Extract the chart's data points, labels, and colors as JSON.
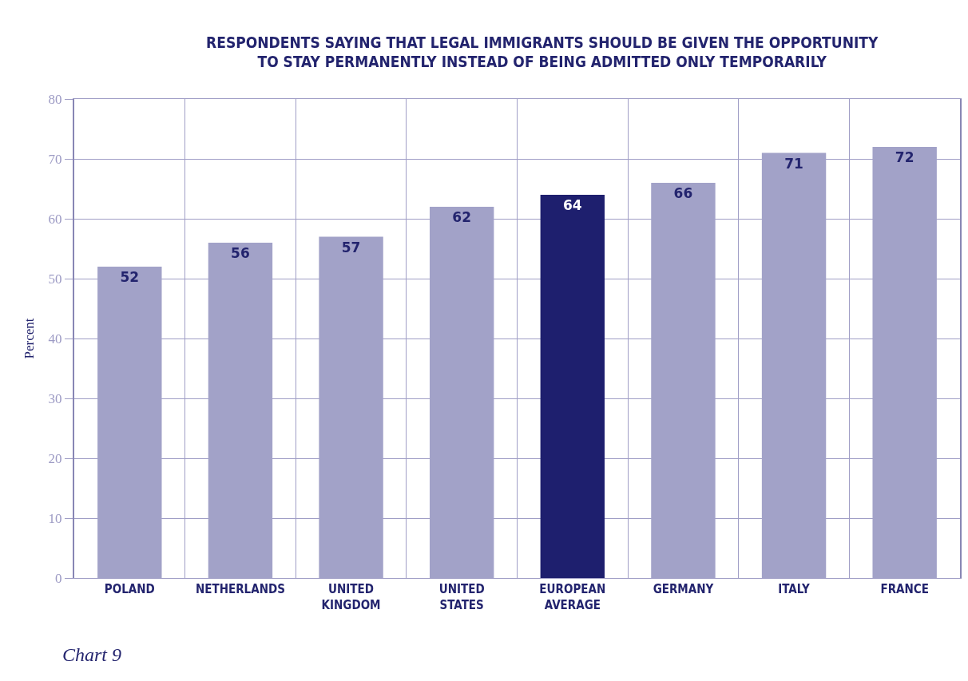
{
  "chart_data": {
    "type": "bar",
    "title": "RESPONDENTS SAYING THAT LEGAL IMMIGRANTS SHOULD BE GIVEN THE OPPORTUNITY TO STAY PERMANENTLY INSTEAD OF BEING ADMITTED ONLY TEMPORARILY",
    "ylabel": "Percent",
    "categories": [
      "POLAND",
      "NETHERLANDS",
      "UNITED KINGDOM",
      "UNITED STATES",
      "EUROPEAN AVERAGE",
      "GERMANY",
      "ITALY",
      "FRANCE"
    ],
    "values": [
      52,
      56,
      57,
      62,
      64,
      66,
      71,
      72
    ],
    "colors": [
      "#a2a2c8",
      "#a2a2c8",
      "#a2a2c8",
      "#a2a2c8",
      "#1e1f6e",
      "#a2a2c8",
      "#a2a2c8",
      "#a2a2c8"
    ],
    "ylim": [
      0,
      80
    ],
    "yticks": [
      0,
      10,
      20,
      30,
      40,
      50,
      60,
      70,
      80
    ],
    "grid": true,
    "data_labels": true,
    "annotations": [
      "Chart 9"
    ]
  }
}
